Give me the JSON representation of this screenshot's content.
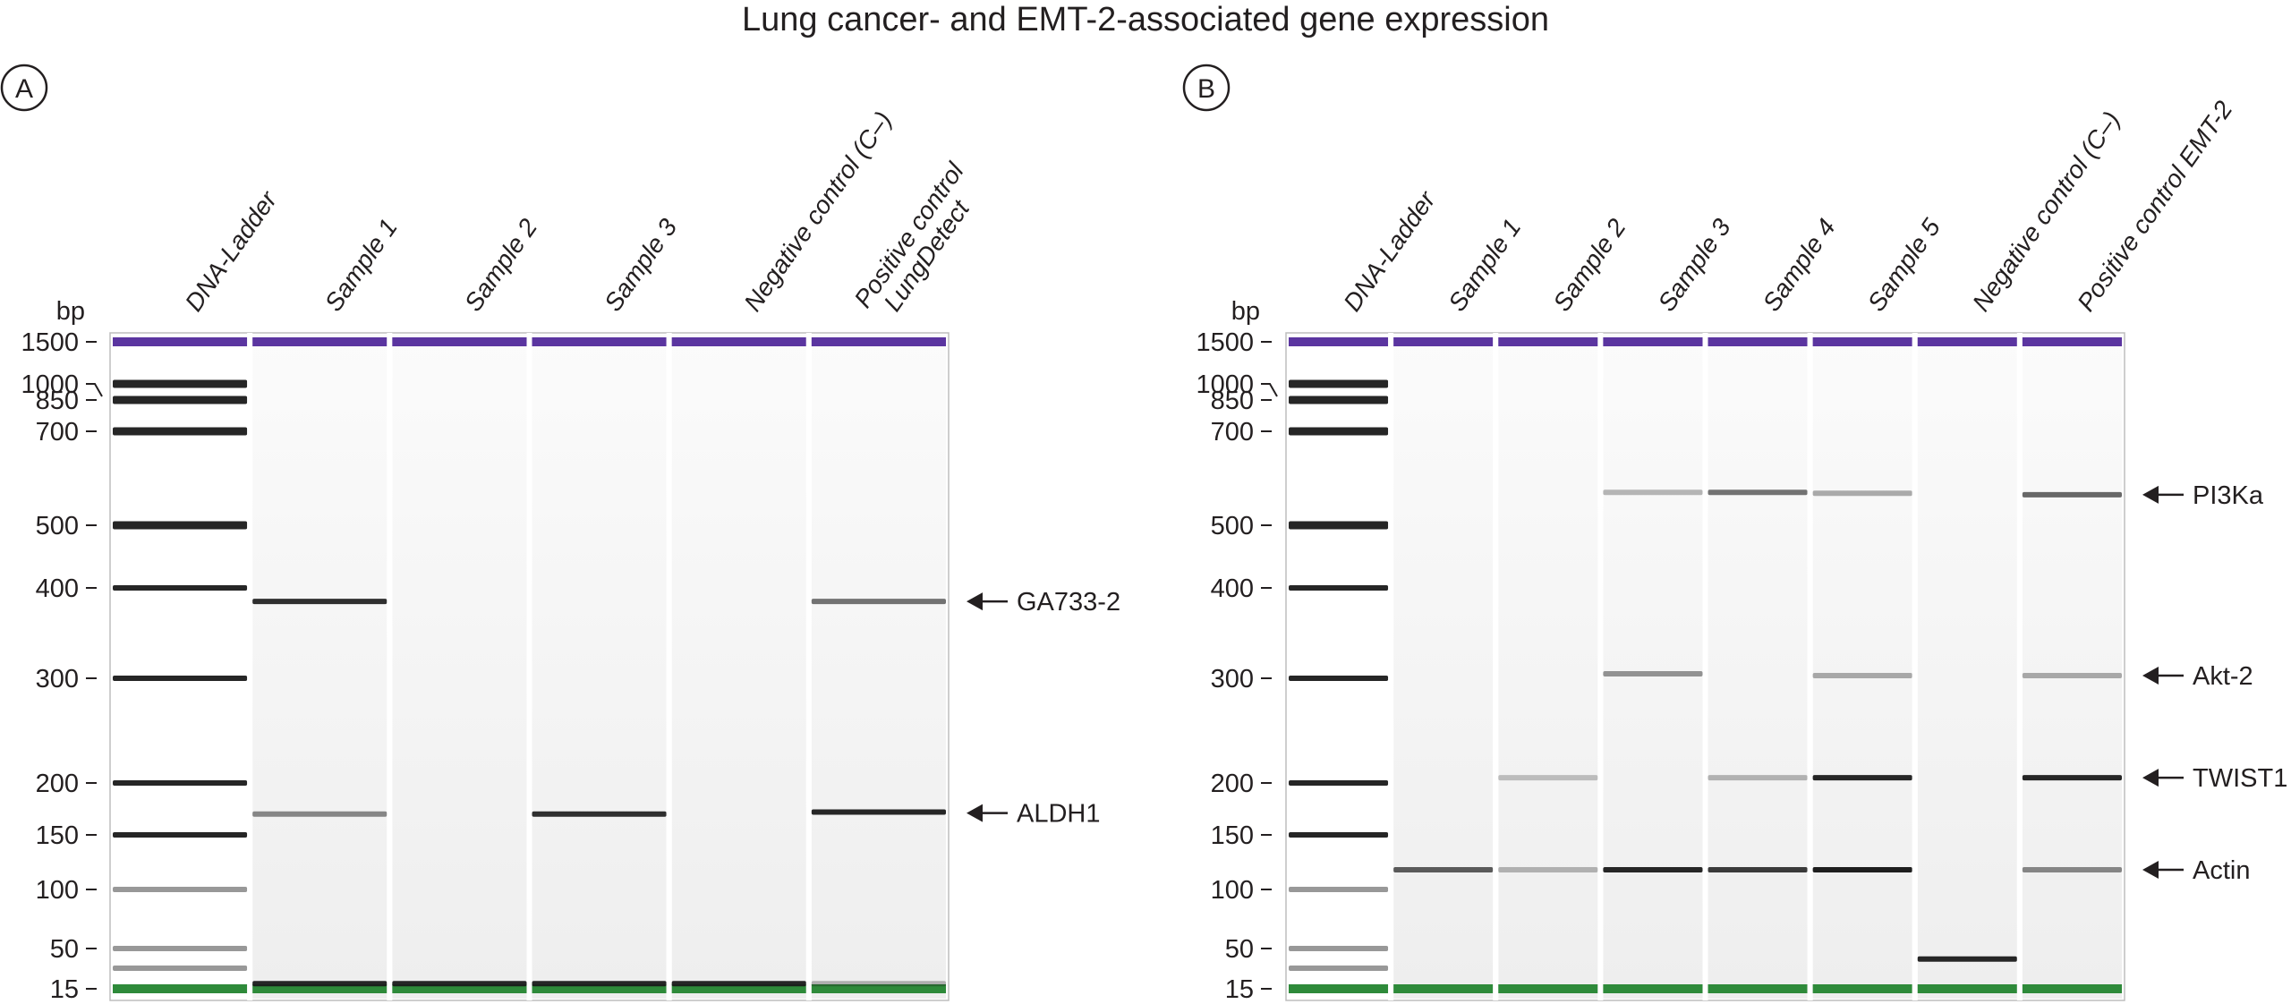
{
  "figure_title": "Lung cancer- and EMT-2-associated gene expression",
  "chart_data": [
    {
      "type": "gel",
      "panel": "A",
      "yunit": "bp",
      "ladder_ticks": [
        1500,
        1000,
        850,
        700,
        500,
        400,
        300,
        200,
        150,
        100,
        50,
        15
      ],
      "ladder_bands": [
        1000,
        850,
        700,
        500,
        400,
        300,
        200,
        150,
        100,
        50,
        35
      ],
      "upper_marker_bp": 1500,
      "lower_marker_bp": 15,
      "lanes": [
        {
          "name": "DNA-Ladder",
          "label_lines": [
            "DNA-Ladder"
          ],
          "bands": []
        },
        {
          "name": "Sample 1",
          "label_lines": [
            "Sample 1"
          ],
          "bands": [
            {
              "bp": 385,
              "intensity": 0.9
            },
            {
              "bp": 170,
              "intensity": 0.5
            },
            {
              "bp": 20,
              "intensity": 0.95
            }
          ]
        },
        {
          "name": "Sample 2",
          "label_lines": [
            "Sample 2"
          ],
          "bands": [
            {
              "bp": 20,
              "intensity": 0.95
            }
          ]
        },
        {
          "name": "Sample 3",
          "label_lines": [
            "Sample 3"
          ],
          "bands": [
            {
              "bp": 170,
              "intensity": 0.9
            },
            {
              "bp": 20,
              "intensity": 0.95
            }
          ]
        },
        {
          "name": "Negative control (C–)",
          "label_lines": [
            "Negative control (C–)"
          ],
          "bands": [
            {
              "bp": 20,
              "intensity": 0.95
            }
          ]
        },
        {
          "name": "Positive control LungDetect",
          "label_lines": [
            "Positive control",
            "LungDetect"
          ],
          "bands": [
            {
              "bp": 385,
              "intensity": 0.6
            },
            {
              "bp": 172,
              "intensity": 0.95
            },
            {
              "bp": 20,
              "intensity": 0.3
            }
          ]
        }
      ],
      "annotations": [
        {
          "label": "GA733-2",
          "bp": 385
        },
        {
          "label": "ALDH1",
          "bp": 171
        }
      ]
    },
    {
      "type": "gel",
      "panel": "B",
      "yunit": "bp",
      "ladder_ticks": [
        1500,
        1000,
        850,
        700,
        500,
        400,
        300,
        200,
        150,
        100,
        50,
        15
      ],
      "ladder_bands": [
        1000,
        850,
        700,
        500,
        400,
        300,
        200,
        150,
        100,
        50,
        35
      ],
      "upper_marker_bp": 1500,
      "lower_marker_bp": 15,
      "lanes": [
        {
          "name": "DNA-Ladder",
          "label_lines": [
            "DNA-Ladder"
          ],
          "bands": []
        },
        {
          "name": "Sample 1",
          "label_lines": [
            "Sample 1"
          ],
          "bands": [
            {
              "bp": 118,
              "intensity": 0.7
            }
          ]
        },
        {
          "name": "Sample 2",
          "label_lines": [
            "Sample 2"
          ],
          "bands": [
            {
              "bp": 205,
              "intensity": 0.25
            },
            {
              "bp": 118,
              "intensity": 0.3
            }
          ]
        },
        {
          "name": "Sample 3",
          "label_lines": [
            "Sample 3"
          ],
          "bands": [
            {
              "bp": 570,
              "intensity": 0.3
            },
            {
              "bp": 305,
              "intensity": 0.45
            },
            {
              "bp": 118,
              "intensity": 0.95
            }
          ]
        },
        {
          "name": "Sample 4",
          "label_lines": [
            "Sample 4"
          ],
          "bands": [
            {
              "bp": 570,
              "intensity": 0.6
            },
            {
              "bp": 205,
              "intensity": 0.3
            },
            {
              "bp": 118,
              "intensity": 0.85
            }
          ]
        },
        {
          "name": "Sample 5",
          "label_lines": [
            "Sample 5"
          ],
          "bands": [
            {
              "bp": 568,
              "intensity": 0.35
            },
            {
              "bp": 303,
              "intensity": 0.35
            },
            {
              "bp": 205,
              "intensity": 0.95
            },
            {
              "bp": 118,
              "intensity": 0.98
            }
          ]
        },
        {
          "name": "Negative control (C–)",
          "label_lines": [
            "Negative control (C–)"
          ],
          "bands": [
            {
              "bp": 42,
              "intensity": 0.95
            }
          ]
        },
        {
          "name": "Positive control EMT-2",
          "label_lines": [
            "Positive control EMT-2"
          ],
          "bands": [
            {
              "bp": 565,
              "intensity": 0.65
            },
            {
              "bp": 303,
              "intensity": 0.35
            },
            {
              "bp": 205,
              "intensity": 0.95
            },
            {
              "bp": 118,
              "intensity": 0.5
            }
          ]
        }
      ],
      "annotations": [
        {
          "label": "PI3Ka",
          "bp": 565
        },
        {
          "label": "Akt-2",
          "bp": 303
        },
        {
          "label": "TWIST1",
          "bp": 205
        },
        {
          "label": "Actin",
          "bp": 118
        }
      ]
    }
  ],
  "colors": {
    "upper_marker": "#5b35a0",
    "lower_marker": "#2e8a3a",
    "band": "#1a1a1a",
    "gel_background": "#f6f6f6",
    "text": "#231f20"
  }
}
